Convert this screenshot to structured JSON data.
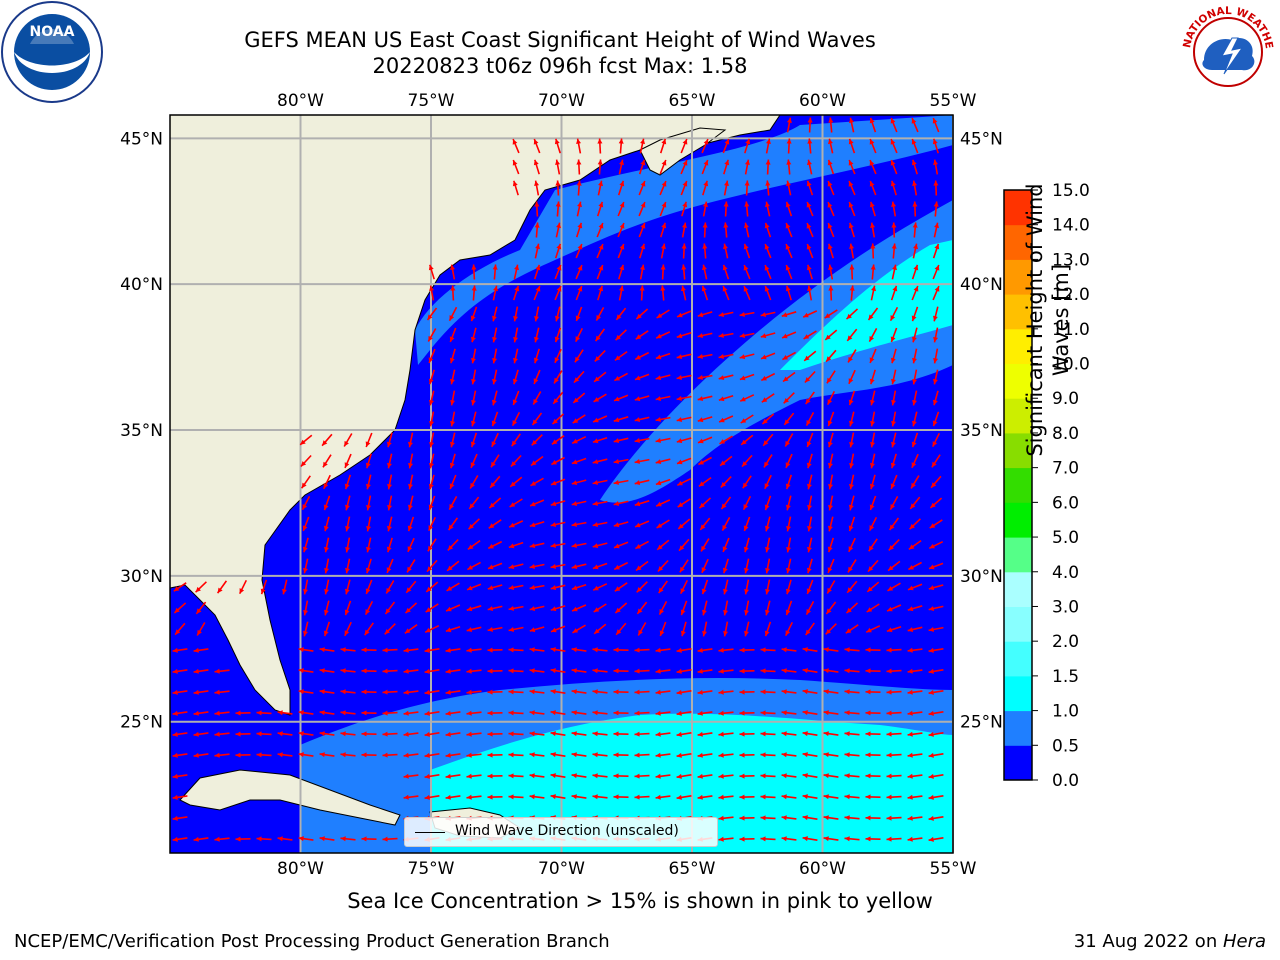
{
  "title": {
    "line1": "GEFS MEAN US East Coast Significant Height of Wind Waves",
    "line2": "20220823 t06z 096h fcst   Max: 1.58"
  },
  "logos": {
    "left": {
      "text": "NOAA",
      "icon": "noaa-logo-icon"
    },
    "right": {
      "text": "NATIONAL WEATHER SERVICE",
      "icon": "nws-logo-icon"
    }
  },
  "map": {
    "lon_labels": [
      "80°W",
      "75°W",
      "70°W",
      "65°W",
      "60°W",
      "55°W"
    ],
    "lat_labels": [
      "45°N",
      "40°N",
      "35°N",
      "30°N",
      "25°N"
    ],
    "extent": {
      "lon": [
        -85,
        -55
      ],
      "lat": [
        20.5,
        45.8
      ]
    },
    "legend_label": "Wind Wave Direction (unscaled)",
    "colors": {
      "land": "#efefdc",
      "water_low": "#0000ff",
      "water_mid": "#1f7fff",
      "water_high": "#00ffff",
      "arrow": "#ff0000"
    }
  },
  "colorbar": {
    "title": "Significant Height of Wind Waves [m]",
    "ticks": [
      "0.0",
      "0.5",
      "1.0",
      "1.5",
      "2.0",
      "3.0",
      "4.0",
      "5.0",
      "6.0",
      "7.0",
      "8.0",
      "9.0",
      "10.0",
      "11.0",
      "12.0",
      "13.0",
      "14.0",
      "15.0"
    ],
    "colors": [
      "#0000ff",
      "#1f7fff",
      "#00ffff",
      "#44ffff",
      "#88ffff",
      "#aaffff",
      "#55ff88",
      "#00ee00",
      "#33dd00",
      "#88dd00",
      "#ccee00",
      "#eeff00",
      "#ffee00",
      "#ffc000",
      "#ff9900",
      "#ff6600",
      "#ff3300"
    ]
  },
  "footer": {
    "seaice": "Sea Ice Concentration > 15% is shown in pink to yellow",
    "left": "NCEP/EMC/Verification Post Processing Product Generation Branch",
    "right_date": "31 Aug 2022 on ",
    "right_host": "Hera"
  }
}
